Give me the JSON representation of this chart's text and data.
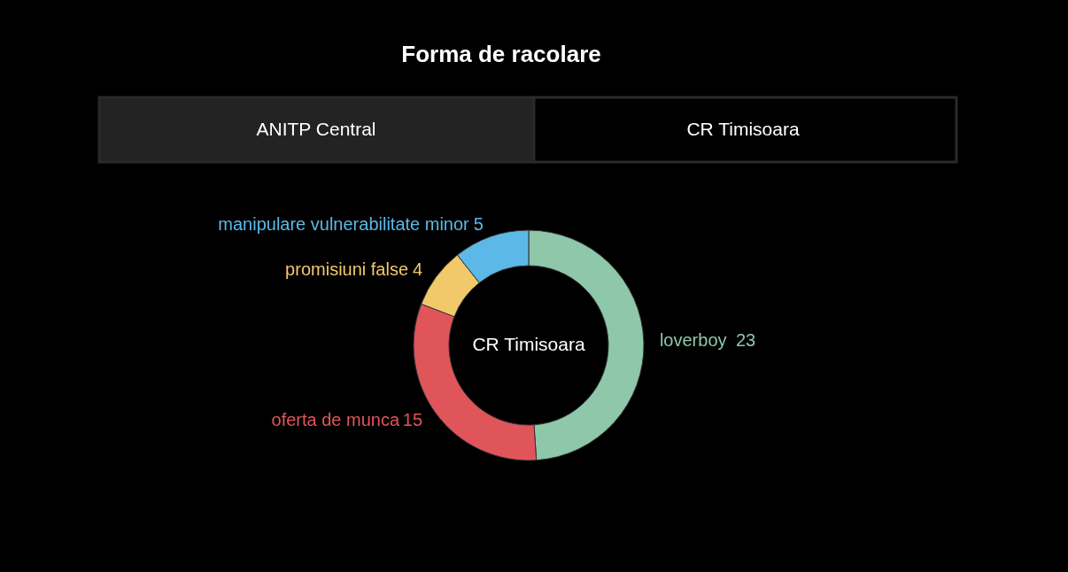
{
  "chart_data": {
    "type": "donut",
    "title": "Forma de racolare",
    "categories": [
      "loverboy",
      "oferta de munca",
      "promisiuni false",
      "manipulare vulnerabilitate minor"
    ],
    "values": [
      23,
      15,
      4,
      5
    ],
    "colors": [
      "#8fc7aa",
      "#e0555a",
      "#f2c96a",
      "#5cb8e6"
    ],
    "data_labels": true,
    "annotations": [
      "ANITP Central",
      "CR Timisoara",
      "CR Timisoara"
    ]
  }
}
